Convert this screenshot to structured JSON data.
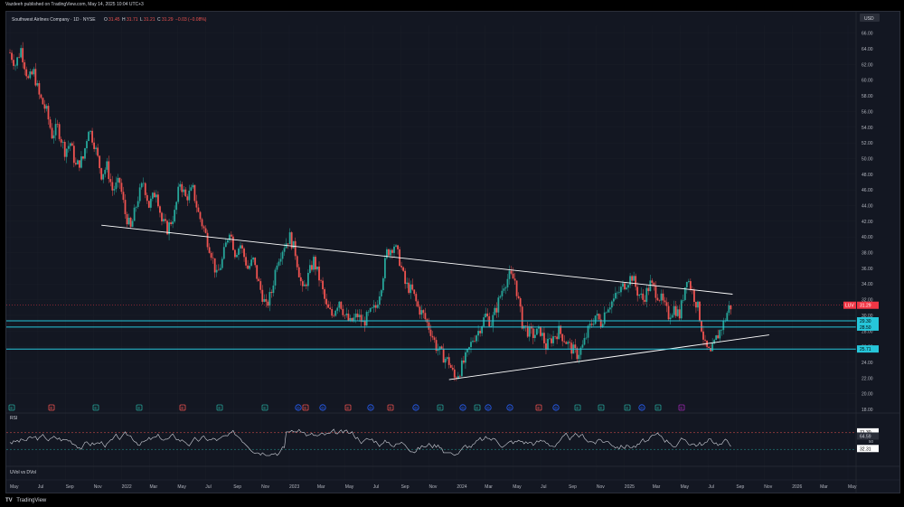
{
  "publish_line": "Vazdeeh published on TradingView.com, May 14, 2025 10:04 UTC+3",
  "brand": "TradingView",
  "chart_data": {
    "type": "candlestick",
    "symbol_title": "Southwest Airlines Company · 1D · NYSE",
    "ohlc": {
      "o_label": "O",
      "o": "31.45",
      "h_label": "H",
      "h": "31.71",
      "l_label": "L",
      "l": "31.21",
      "c_label": "C",
      "c": "31.29",
      "change": "−0.03 (−0.08%)"
    },
    "currency": "USD",
    "ylim": [
      18,
      67
    ],
    "yticks": [
      "66.00",
      "64.00",
      "62.00",
      "60.00",
      "58.00",
      "56.00",
      "54.00",
      "52.00",
      "50.00",
      "48.00",
      "46.00",
      "44.00",
      "42.00",
      "40.00",
      "38.00",
      "36.00",
      "34.00",
      "32.00",
      "30.00",
      "28.00",
      "26.00",
      "24.00",
      "22.00",
      "20.00",
      "18.00"
    ],
    "xticks": [
      "May",
      "Jul",
      "Sep",
      "Nov",
      "2022",
      "Mar",
      "May",
      "Jul",
      "Sep",
      "Nov",
      "2023",
      "Mar",
      "May",
      "Jul",
      "Sep",
      "Nov",
      "2024",
      "Mar",
      "May",
      "Jul",
      "Sep",
      "Nov",
      "2025",
      "Mar",
      "May",
      "Jul",
      "Sep",
      "Nov",
      "2026",
      "Mar",
      "May"
    ],
    "price_path": [
      [
        0,
        63.5
      ],
      [
        3,
        62
      ],
      [
        6,
        64
      ],
      [
        10,
        60
      ],
      [
        13,
        61
      ],
      [
        16,
        58
      ],
      [
        20,
        56
      ],
      [
        23,
        53
      ],
      [
        26,
        54
      ],
      [
        30,
        51
      ],
      [
        33,
        52
      ],
      [
        36,
        49
      ],
      [
        40,
        50
      ],
      [
        43,
        54
      ],
      [
        46,
        52
      ],
      [
        50,
        48
      ],
      [
        53,
        49
      ],
      [
        56,
        46
      ],
      [
        60,
        47
      ],
      [
        63,
        43
      ],
      [
        66,
        41
      ],
      [
        70,
        45
      ],
      [
        73,
        47
      ],
      [
        76,
        44
      ],
      [
        80,
        46
      ],
      [
        83,
        42
      ],
      [
        86,
        41
      ],
      [
        90,
        43
      ],
      [
        93,
        47
      ],
      [
        96,
        45
      ],
      [
        100,
        46
      ],
      [
        103,
        43
      ],
      [
        106,
        41
      ],
      [
        110,
        38
      ],
      [
        113,
        35
      ],
      [
        116,
        37
      ],
      [
        120,
        41
      ],
      [
        123,
        38
      ],
      [
        126,
        39
      ],
      [
        130,
        36
      ],
      [
        133,
        37
      ],
      [
        136,
        34
      ],
      [
        140,
        31
      ],
      [
        143,
        33
      ],
      [
        146,
        37
      ],
      [
        150,
        39
      ],
      [
        153,
        40
      ],
      [
        156,
        38
      ],
      [
        160,
        33
      ],
      [
        163,
        35
      ],
      [
        166,
        37
      ],
      [
        170,
        34
      ],
      [
        173,
        31
      ],
      [
        176,
        30
      ],
      [
        180,
        32
      ],
      [
        183,
        30
      ],
      [
        186,
        29
      ],
      [
        190,
        30
      ],
      [
        193,
        29
      ],
      [
        196,
        30
      ],
      [
        200,
        31
      ],
      [
        203,
        34
      ],
      [
        206,
        38
      ],
      [
        210,
        39
      ],
      [
        213,
        37
      ],
      [
        216,
        34
      ],
      [
        220,
        33
      ],
      [
        223,
        31
      ],
      [
        226,
        30
      ],
      [
        230,
        28
      ],
      [
        233,
        26
      ],
      [
        236,
        25
      ],
      [
        240,
        24
      ],
      [
        243,
        22
      ],
      [
        246,
        23
      ],
      [
        250,
        25
      ],
      [
        253,
        27
      ],
      [
        256,
        28
      ],
      [
        260,
        30
      ],
      [
        263,
        29
      ],
      [
        266,
        31
      ],
      [
        270,
        34
      ],
      [
        273,
        35
      ],
      [
        276,
        34.5
      ],
      [
        280,
        29
      ],
      [
        283,
        28
      ],
      [
        286,
        27.5
      ],
      [
        290,
        28
      ],
      [
        293,
        26
      ],
      [
        296,
        27
      ],
      [
        300,
        28
      ],
      [
        303,
        27
      ],
      [
        306,
        26
      ],
      [
        310,
        25
      ],
      [
        313,
        26
      ],
      [
        316,
        28
      ],
      [
        320,
        30
      ],
      [
        323,
        29
      ],
      [
        326,
        31
      ],
      [
        330,
        32
      ],
      [
        333,
        33
      ],
      [
        336,
        34
      ],
      [
        340,
        35
      ],
      [
        343,
        33
      ],
      [
        346,
        32
      ],
      [
        350,
        34
      ],
      [
        353,
        33
      ],
      [
        356,
        32
      ],
      [
        360,
        30
      ],
      [
        363,
        31
      ],
      [
        366,
        30
      ],
      [
        370,
        35
      ],
      [
        373,
        33
      ],
      [
        376,
        31
      ],
      [
        380,
        26
      ],
      [
        383,
        25
      ],
      [
        386,
        27
      ],
      [
        390,
        29
      ],
      [
        393,
        31
      ],
      [
        395,
        31.29
      ]
    ],
    "drawings": {
      "resistance_trendline": [
        [
          [
            50,
            41.5
          ],
          [
            395,
            32.7
          ]
        ]
      ],
      "support_trendline": [
        [
          [
            240,
            21.8
          ],
          [
            415,
            27.5
          ]
        ]
      ],
      "horizontal_levels": [
        29.3,
        28.5,
        25.7
      ]
    },
    "price_labels": [
      {
        "text": "31.29",
        "tag": "LUV",
        "color": "#f23645"
      },
      {
        "text": "29.30",
        "color": "#26c6da"
      },
      {
        "text": "28.50",
        "color": "#26c6da"
      },
      {
        "text": "25.71",
        "color": "#26c6da"
      }
    ],
    "events": [
      {
        "letter": "E",
        "kind": "earnings",
        "color": "#26a69a"
      },
      {
        "letter": "E",
        "kind": "earnings",
        "color": "#ef5350"
      },
      {
        "letter": "E",
        "kind": "earnings",
        "color": "#26a69a"
      },
      {
        "letter": "E",
        "kind": "earnings",
        "color": "#26a69a"
      },
      {
        "letter": "E",
        "kind": "earnings",
        "color": "#ef5350"
      },
      {
        "letter": "E",
        "kind": "earnings",
        "color": "#26a69a"
      },
      {
        "letter": "E",
        "kind": "earnings",
        "color": "#26a69a"
      },
      {
        "letter": "D",
        "kind": "dividend",
        "color": "#2962ff"
      },
      {
        "letter": "E",
        "kind": "earnings",
        "color": "#ef5350"
      },
      {
        "letter": "D",
        "kind": "dividend",
        "color": "#2962ff"
      },
      {
        "letter": "E",
        "kind": "earnings",
        "color": "#ef5350"
      },
      {
        "letter": "D",
        "kind": "dividend",
        "color": "#2962ff"
      },
      {
        "letter": "E",
        "kind": "earnings",
        "color": "#ef5350"
      },
      {
        "letter": "D",
        "kind": "dividend",
        "color": "#2962ff"
      },
      {
        "letter": "E",
        "kind": "earnings",
        "color": "#26a69a"
      },
      {
        "letter": "D",
        "kind": "dividend",
        "color": "#2962ff"
      },
      {
        "letter": "E",
        "kind": "earnings",
        "color": "#26a69a"
      },
      {
        "letter": "D",
        "kind": "dividend",
        "color": "#2962ff"
      },
      {
        "letter": "D",
        "kind": "dividend",
        "color": "#2962ff"
      },
      {
        "letter": "E",
        "kind": "earnings",
        "color": "#ef5350"
      },
      {
        "letter": "D",
        "kind": "dividend",
        "color": "#2962ff"
      },
      {
        "letter": "E",
        "kind": "earnings",
        "color": "#26a69a"
      },
      {
        "letter": "E",
        "kind": "earnings",
        "color": "#26a69a"
      },
      {
        "letter": "E",
        "kind": "earnings",
        "color": "#26a69a"
      },
      {
        "letter": "D",
        "kind": "dividend",
        "color": "#2962ff"
      },
      {
        "letter": "E",
        "kind": "earnings",
        "color": "#26a69a"
      },
      {
        "letter": "E",
        "kind": "earnings",
        "color": "#9c27b0"
      }
    ],
    "rsi": {
      "label": "RSI",
      "levels": [
        "71.30",
        "64.59",
        "32.31"
      ],
      "mid_label": "50"
    },
    "extra_pane_label": "UVol vs DVol",
    "colors": {
      "up": "#26a69a",
      "down": "#ef5350",
      "line": "#ffffff",
      "level": "#26c6da",
      "bg": "#131722",
      "grid": "#1e222d"
    }
  }
}
